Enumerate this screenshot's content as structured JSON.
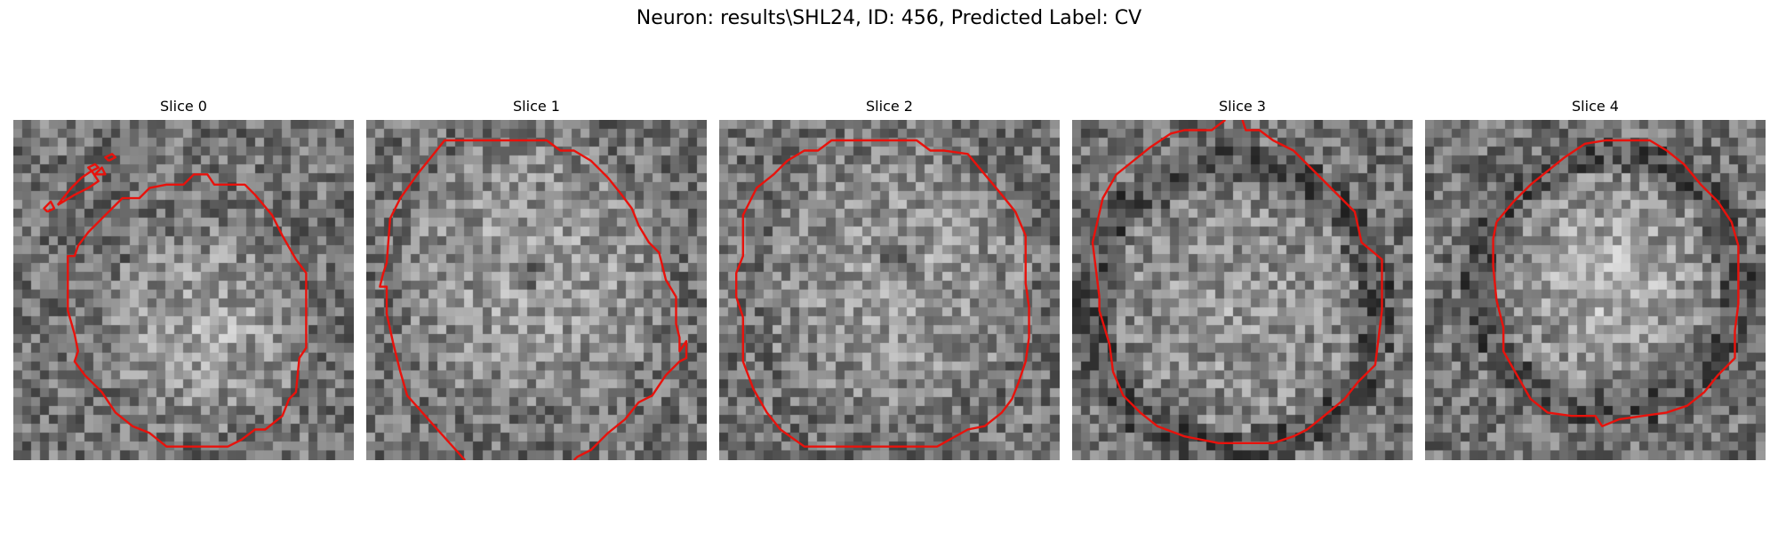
{
  "figure": {
    "title": "Neuron: results\\SHL24, ID: 456, Predicted Label: CV"
  },
  "panels": [
    {
      "title": "Slice 0",
      "grid_size": 38,
      "image": {
        "center": [
          0.56,
          0.62
        ],
        "radius": 0.3,
        "brightness": 0.18,
        "dark_spot": null,
        "ring": false
      },
      "contours": [
        [
          [
            0.16,
            0.43
          ],
          [
            0.16,
            0.4
          ],
          [
            0.18,
            0.4
          ],
          [
            0.19,
            0.37
          ],
          [
            0.22,
            0.33
          ],
          [
            0.27,
            0.28
          ],
          [
            0.32,
            0.23
          ],
          [
            0.37,
            0.23
          ],
          [
            0.4,
            0.2
          ],
          [
            0.45,
            0.19
          ],
          [
            0.5,
            0.19
          ],
          [
            0.53,
            0.16
          ],
          [
            0.57,
            0.16
          ],
          [
            0.59,
            0.19
          ],
          [
            0.63,
            0.19
          ],
          [
            0.68,
            0.19
          ],
          [
            0.71,
            0.22
          ],
          [
            0.76,
            0.28
          ],
          [
            0.79,
            0.34
          ],
          [
            0.83,
            0.41
          ],
          [
            0.86,
            0.45
          ],
          [
            0.86,
            0.56
          ],
          [
            0.86,
            0.67
          ],
          [
            0.84,
            0.7
          ],
          [
            0.83,
            0.8
          ],
          [
            0.81,
            0.82
          ],
          [
            0.79,
            0.87
          ],
          [
            0.74,
            0.91
          ],
          [
            0.71,
            0.91
          ],
          [
            0.67,
            0.94
          ],
          [
            0.63,
            0.96
          ],
          [
            0.57,
            0.96
          ],
          [
            0.49,
            0.96
          ],
          [
            0.45,
            0.96
          ],
          [
            0.4,
            0.92
          ],
          [
            0.35,
            0.9
          ],
          [
            0.3,
            0.86
          ],
          [
            0.26,
            0.8
          ],
          [
            0.21,
            0.75
          ],
          [
            0.18,
            0.71
          ],
          [
            0.19,
            0.68
          ],
          [
            0.18,
            0.63
          ],
          [
            0.16,
            0.56
          ],
          [
            0.16,
            0.43
          ]
        ],
        [
          [
            0.13,
            0.25
          ],
          [
            0.18,
            0.22
          ],
          [
            0.22,
            0.2
          ],
          [
            0.25,
            0.18
          ],
          [
            0.23,
            0.15
          ],
          [
            0.2,
            0.17
          ],
          [
            0.17,
            0.2
          ],
          [
            0.13,
            0.25
          ]
        ],
        [
          [
            0.1,
            0.27
          ],
          [
            0.12,
            0.26
          ],
          [
            0.11,
            0.24
          ],
          [
            0.09,
            0.26
          ],
          [
            0.1,
            0.27
          ]
        ],
        [
          [
            0.23,
            0.15
          ],
          [
            0.25,
            0.14
          ],
          [
            0.24,
            0.13
          ],
          [
            0.22,
            0.14
          ],
          [
            0.23,
            0.15
          ]
        ],
        [
          [
            0.28,
            0.12
          ],
          [
            0.3,
            0.11
          ],
          [
            0.29,
            0.1
          ],
          [
            0.27,
            0.11
          ],
          [
            0.28,
            0.12
          ]
        ],
        [
          [
            0.24,
            0.16
          ],
          [
            0.27,
            0.16
          ],
          [
            0.26,
            0.14
          ],
          [
            0.24,
            0.16
          ]
        ]
      ]
    },
    {
      "title": "Slice 1",
      "grid_size": 38,
      "image": {
        "center": [
          0.5,
          0.45
        ],
        "radius": 0.4,
        "brightness": 0.15,
        "dark_spot": [
          0.47,
          0.45
        ],
        "ring": false
      },
      "contours": [
        [
          [
            0.29,
            1.0
          ],
          [
            0.2,
            0.9
          ],
          [
            0.12,
            0.81
          ],
          [
            0.1,
            0.74
          ],
          [
            0.08,
            0.66
          ],
          [
            0.06,
            0.57
          ],
          [
            0.06,
            0.49
          ],
          [
            0.04,
            0.49
          ],
          [
            0.05,
            0.45
          ],
          [
            0.06,
            0.42
          ],
          [
            0.07,
            0.29
          ],
          [
            0.1,
            0.23
          ],
          [
            0.15,
            0.16
          ],
          [
            0.19,
            0.11
          ],
          [
            0.23,
            0.06
          ],
          [
            0.29,
            0.06
          ],
          [
            0.35,
            0.06
          ],
          [
            0.42,
            0.06
          ],
          [
            0.47,
            0.06
          ],
          [
            0.53,
            0.06
          ],
          [
            0.57,
            0.09
          ],
          [
            0.61,
            0.09
          ],
          [
            0.66,
            0.12
          ],
          [
            0.71,
            0.17
          ],
          [
            0.75,
            0.22
          ],
          [
            0.78,
            0.26
          ],
          [
            0.8,
            0.31
          ],
          [
            0.83,
            0.36
          ],
          [
            0.86,
            0.39
          ],
          [
            0.88,
            0.47
          ],
          [
            0.91,
            0.52
          ],
          [
            0.91,
            0.6
          ],
          [
            0.92,
            0.64
          ],
          [
            0.92,
            0.68
          ],
          [
            0.94,
            0.65
          ],
          [
            0.94,
            0.7
          ],
          [
            0.92,
            0.71
          ],
          [
            0.88,
            0.75
          ],
          [
            0.84,
            0.81
          ],
          [
            0.8,
            0.83
          ],
          [
            0.76,
            0.88
          ],
          [
            0.71,
            0.92
          ],
          [
            0.66,
            0.97
          ],
          [
            0.62,
            0.99
          ],
          [
            0.61,
            1.0
          ]
        ]
      ]
    },
    {
      "title": "Slice 2",
      "grid_size": 38,
      "image": {
        "center": [
          0.52,
          0.48
        ],
        "radius": 0.4,
        "brightness": 0.12,
        "dark_spot": [
          0.53,
          0.43
        ],
        "ring": false
      },
      "contours": [
        [
          [
            0.07,
            0.58
          ],
          [
            0.05,
            0.52
          ],
          [
            0.05,
            0.45
          ],
          [
            0.07,
            0.4
          ],
          [
            0.07,
            0.28
          ],
          [
            0.11,
            0.2
          ],
          [
            0.16,
            0.16
          ],
          [
            0.2,
            0.12
          ],
          [
            0.25,
            0.09
          ],
          [
            0.29,
            0.09
          ],
          [
            0.33,
            0.06
          ],
          [
            0.4,
            0.06
          ],
          [
            0.5,
            0.06
          ],
          [
            0.58,
            0.06
          ],
          [
            0.62,
            0.09
          ],
          [
            0.66,
            0.09
          ],
          [
            0.73,
            0.1
          ],
          [
            0.78,
            0.16
          ],
          [
            0.83,
            0.22
          ],
          [
            0.87,
            0.27
          ],
          [
            0.9,
            0.34
          ],
          [
            0.9,
            0.41
          ],
          [
            0.9,
            0.48
          ],
          [
            0.91,
            0.55
          ],
          [
            0.91,
            0.64
          ],
          [
            0.9,
            0.71
          ],
          [
            0.88,
            0.77
          ],
          [
            0.86,
            0.82
          ],
          [
            0.83,
            0.86
          ],
          [
            0.78,
            0.9
          ],
          [
            0.73,
            0.91
          ],
          [
            0.64,
            0.96
          ],
          [
            0.55,
            0.96
          ],
          [
            0.44,
            0.96
          ],
          [
            0.34,
            0.96
          ],
          [
            0.25,
            0.96
          ],
          [
            0.18,
            0.91
          ],
          [
            0.14,
            0.86
          ],
          [
            0.1,
            0.79
          ],
          [
            0.07,
            0.71
          ],
          [
            0.07,
            0.58
          ]
        ]
      ]
    },
    {
      "title": "Slice 3",
      "grid_size": 38,
      "image": {
        "center": [
          0.48,
          0.55
        ],
        "radius": 0.38,
        "brightness": 0.1,
        "dark_spot": null,
        "ring": true
      },
      "contours": [
        [
          [
            0.08,
            0.52
          ],
          [
            0.06,
            0.36
          ],
          [
            0.09,
            0.23
          ],
          [
            0.13,
            0.16
          ],
          [
            0.18,
            0.12
          ],
          [
            0.23,
            0.08
          ],
          [
            0.29,
            0.04
          ],
          [
            0.33,
            0.03
          ],
          [
            0.41,
            0.03
          ],
          [
            0.45,
            0.0
          ]
        ],
        [
          [
            0.5,
            0.0
          ],
          [
            0.51,
            0.03
          ],
          [
            0.55,
            0.03
          ],
          [
            0.59,
            0.06
          ],
          [
            0.65,
            0.09
          ],
          [
            0.69,
            0.13
          ],
          [
            0.74,
            0.18
          ],
          [
            0.79,
            0.23
          ],
          [
            0.83,
            0.27
          ],
          [
            0.85,
            0.36
          ],
          [
            0.91,
            0.41
          ],
          [
            0.91,
            0.48
          ],
          [
            0.91,
            0.56
          ],
          [
            0.9,
            0.64
          ],
          [
            0.89,
            0.72
          ],
          [
            0.84,
            0.77
          ],
          [
            0.8,
            0.82
          ],
          [
            0.74,
            0.87
          ],
          [
            0.69,
            0.91
          ],
          [
            0.65,
            0.93
          ],
          [
            0.59,
            0.95
          ],
          [
            0.52,
            0.95
          ],
          [
            0.43,
            0.95
          ],
          [
            0.33,
            0.93
          ],
          [
            0.25,
            0.9
          ],
          [
            0.2,
            0.86
          ],
          [
            0.15,
            0.81
          ],
          [
            0.12,
            0.74
          ],
          [
            0.11,
            0.66
          ],
          [
            0.08,
            0.56
          ],
          [
            0.08,
            0.52
          ]
        ]
      ]
    },
    {
      "title": "Slice 4",
      "grid_size": 38,
      "image": {
        "center": [
          0.54,
          0.48
        ],
        "radius": 0.34,
        "brightness": 0.22,
        "dark_spot": null,
        "ring": true
      },
      "contours": [
        [
          [
            0.21,
            0.3
          ],
          [
            0.26,
            0.24
          ],
          [
            0.31,
            0.19
          ],
          [
            0.36,
            0.15
          ],
          [
            0.41,
            0.11
          ],
          [
            0.47,
            0.07
          ],
          [
            0.53,
            0.06
          ],
          [
            0.6,
            0.06
          ],
          [
            0.66,
            0.06
          ],
          [
            0.71,
            0.09
          ],
          [
            0.76,
            0.13
          ],
          [
            0.81,
            0.19
          ],
          [
            0.86,
            0.24
          ],
          [
            0.9,
            0.3
          ],
          [
            0.92,
            0.37
          ],
          [
            0.92,
            0.47
          ],
          [
            0.92,
            0.54
          ],
          [
            0.91,
            0.62
          ],
          [
            0.91,
            0.7
          ],
          [
            0.86,
            0.75
          ],
          [
            0.82,
            0.8
          ],
          [
            0.77,
            0.84
          ],
          [
            0.71,
            0.86
          ],
          [
            0.64,
            0.87
          ],
          [
            0.57,
            0.88
          ],
          [
            0.52,
            0.9
          ],
          [
            0.5,
            0.87
          ],
          [
            0.43,
            0.87
          ],
          [
            0.36,
            0.86
          ],
          [
            0.31,
            0.82
          ],
          [
            0.27,
            0.75
          ],
          [
            0.23,
            0.68
          ],
          [
            0.23,
            0.61
          ],
          [
            0.21,
            0.53
          ],
          [
            0.2,
            0.43
          ],
          [
            0.2,
            0.35
          ],
          [
            0.21,
            0.3
          ]
        ]
      ]
    }
  ]
}
